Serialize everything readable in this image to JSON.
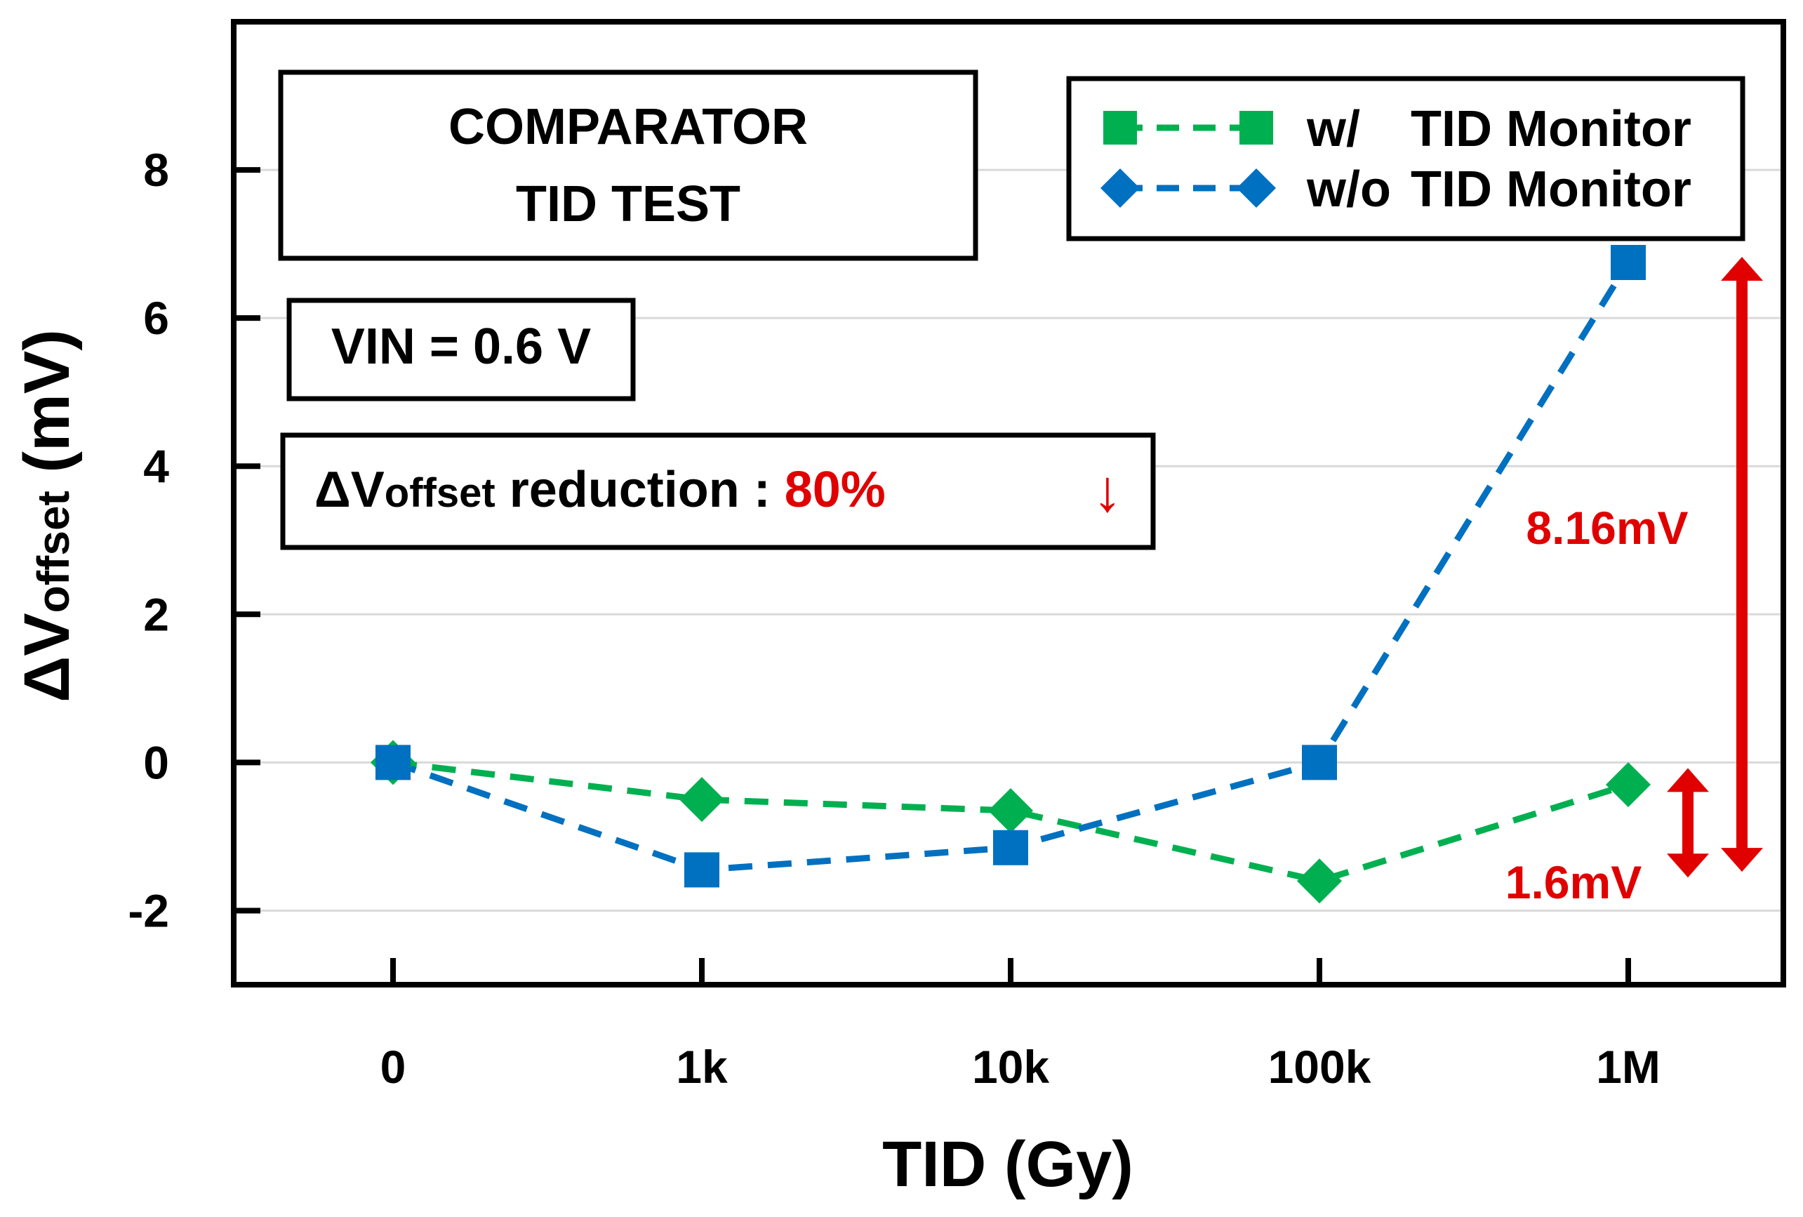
{
  "chart_data": {
    "type": "line",
    "title": "COMPARATOR TID TEST",
    "title_lines": [
      "COMPARATOR",
      "TID TEST"
    ],
    "xlabel": "TID (Gy)",
    "ylabel_main": "ΔV",
    "ylabel_sub": "offset",
    "ylabel_unit": "(mV)",
    "categories": [
      "0",
      "1k",
      "10k",
      "100k",
      "1M"
    ],
    "ylim": [
      -3,
      10
    ],
    "yticks": [
      -2,
      0,
      2,
      4,
      6,
      8
    ],
    "grid": true,
    "legend_position": "top-right",
    "series": [
      {
        "name": "w/ TID Monitor",
        "label_prefix": "w/",
        "label_suffix": "TID Monitor",
        "color": "#00b050",
        "marker": "square",
        "point_marker": "diamond",
        "values": [
          0,
          -0.5,
          -0.65,
          -1.6,
          -0.3
        ]
      },
      {
        "name": "w/o TID Monitor",
        "label_prefix": "w/o",
        "label_suffix": "TID Monitor",
        "color": "#0070c0",
        "marker": "diamond",
        "point_marker": "square",
        "values": [
          0,
          -1.45,
          -1.15,
          0,
          6.75
        ]
      }
    ],
    "annotations": {
      "condition": "VIN = 0.6 V",
      "reduction_prefix": "ΔV",
      "reduction_sub": "offset",
      "reduction_text": "reduction :",
      "reduction_value": "80%",
      "reduction_arrow": "↓",
      "range_large": {
        "label": "8.16mV",
        "from": -1.4,
        "to": 6.75
      },
      "range_small": {
        "label": "1.6mV",
        "from": -1.6,
        "to": 0
      }
    },
    "accent_color": "#e00000"
  }
}
